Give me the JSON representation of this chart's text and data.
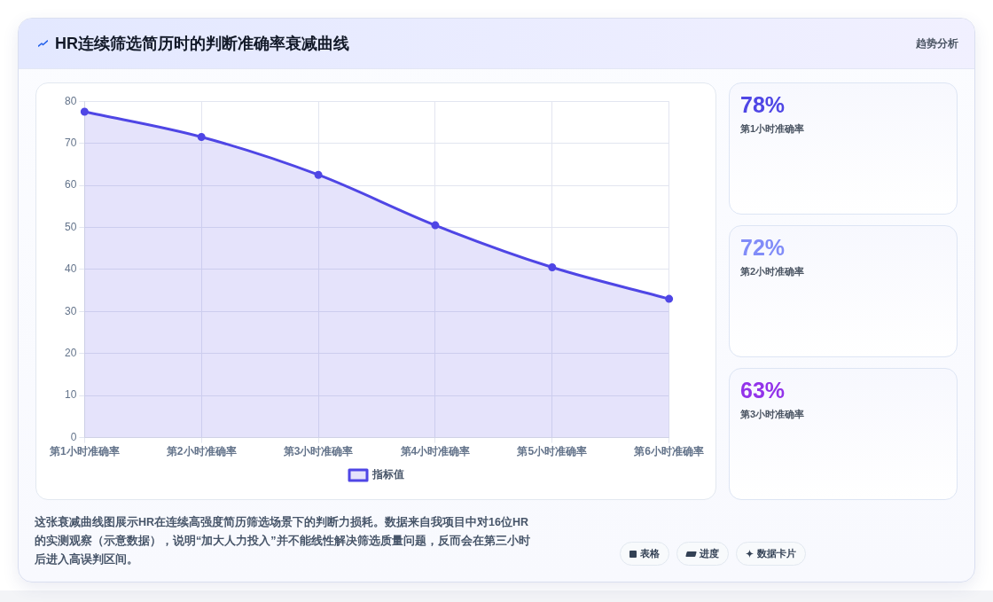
{
  "chart_data": [
    {
      "type": "area",
      "title": "HR连续筛选简历时的判断准确率衰减曲线",
      "categories": [
        "第1小时准确率",
        "第2小时准确率",
        "第3小时准确率",
        "第4小时准确率",
        "第5小时准确率",
        "第6小时准确率"
      ],
      "series": [
        {
          "name": "指标值",
          "color": "#4f46e5",
          "values": [
            77.5,
            71.5,
            62.5,
            50.5,
            40.5,
            33
          ]
        }
      ],
      "ylim": [
        0,
        80
      ],
      "yticks": [
        0,
        10,
        20,
        30,
        40,
        50,
        60,
        70,
        80
      ],
      "grid": true,
      "legend": "bottom",
      "marker": "circle",
      "annotations": [
        "这张衰减曲线图展示HR在连续高强度简历筛选场景下的判断力损耗。数据来自我项目中对16位HR的实测观察（示意数据），说明“加大人力投入”并不能线性解决筛选质量问题，反而会在第三小时后进入高误判区间。",
        "表格",
        "进度",
        "数据卡片"
      ]
    },
    {
      "type": "other",
      "annotations": [
        "趋势分析"
      ],
      "categories": [
        "第1小时准确率",
        "第2小时准确率",
        "第3小时准确率"
      ],
      "value_labels": [
        "78%",
        "72%",
        "63%"
      ],
      "colors": [
        "#4f46e5",
        "#818cf8",
        "#9333ea"
      ]
    }
  ]
}
